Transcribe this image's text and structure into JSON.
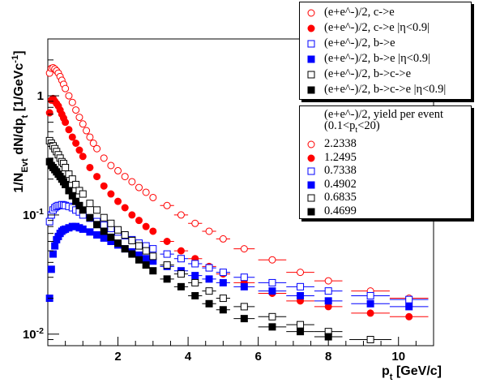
{
  "chart_data": {
    "type": "scatter",
    "xlabel": "p_t [GeV/c]",
    "ylabel": "1/N_Evt dN/dp_t [1/GeVc^-1]",
    "xlim": [
      0,
      11
    ],
    "ylim": [
      0.008,
      3
    ],
    "yscale": "log",
    "x_ticks": [
      "2",
      "4",
      "6",
      "8",
      "10"
    ],
    "y_ticks": [
      "10^-2",
      "10^-1",
      "1"
    ],
    "grid": false,
    "legend_placement": "top-right",
    "series": [
      {
        "name": "(e+e^-)/2, c->e",
        "marker": "open-circle",
        "color": "#ff0000",
        "x": [
          0.05,
          0.1,
          0.15,
          0.2,
          0.25,
          0.3,
          0.35,
          0.4,
          0.45,
          0.5,
          0.6,
          0.7,
          0.8,
          0.9,
          1.0,
          1.1,
          1.2,
          1.3,
          1.4,
          1.6,
          1.8,
          2.0,
          2.2,
          2.4,
          2.6,
          2.8,
          3.0,
          3.4,
          3.8,
          4.2,
          4.6,
          5.0,
          5.6,
          6.4,
          7.2,
          8.0,
          9.2,
          10.3
        ],
        "y": [
          1.55,
          1.7,
          1.72,
          1.68,
          1.62,
          1.55,
          1.45,
          1.35,
          1.25,
          1.15,
          1.0,
          0.88,
          0.76,
          0.66,
          0.58,
          0.51,
          0.45,
          0.4,
          0.36,
          0.3,
          0.26,
          0.235,
          0.21,
          0.19,
          0.17,
          0.155,
          0.14,
          0.12,
          0.1,
          0.085,
          0.073,
          0.063,
          0.052,
          0.042,
          0.033,
          0.028,
          0.023,
          0.02
        ]
      },
      {
        "name": "(e+e^-)/2, c->e |η<0.9|",
        "marker": "filled-circle",
        "color": "#ff0000",
        "x": [
          0.05,
          0.1,
          0.15,
          0.2,
          0.25,
          0.3,
          0.35,
          0.4,
          0.45,
          0.5,
          0.6,
          0.7,
          0.8,
          0.9,
          1.0,
          1.2,
          1.4,
          1.6,
          1.8,
          2.0,
          2.2,
          2.4,
          2.6,
          2.8,
          3.0,
          3.4,
          3.8,
          4.2,
          4.6,
          5.0,
          5.6,
          6.4,
          7.2,
          8.0,
          9.2,
          10.3
        ],
        "y": [
          0.72,
          0.92,
          0.95,
          0.9,
          0.86,
          0.82,
          0.76,
          0.7,
          0.65,
          0.6,
          0.52,
          0.45,
          0.4,
          0.35,
          0.31,
          0.25,
          0.21,
          0.175,
          0.15,
          0.13,
          0.115,
          0.1,
          0.09,
          0.08,
          0.073,
          0.06,
          0.05,
          0.043,
          0.037,
          0.032,
          0.027,
          0.022,
          0.019,
          0.017,
          0.015,
          0.014
        ]
      },
      {
        "name": "(e+e^-)/2, b->e",
        "marker": "open-square",
        "color": "#0000ff",
        "x": [
          0.05,
          0.1,
          0.15,
          0.2,
          0.25,
          0.3,
          0.35,
          0.4,
          0.45,
          0.5,
          0.6,
          0.7,
          0.8,
          0.9,
          1.0,
          1.2,
          1.4,
          1.6,
          1.8,
          2.0,
          2.2,
          2.4,
          2.6,
          2.8,
          3.0,
          3.4,
          3.8,
          4.2,
          4.6,
          5.0,
          5.6,
          6.4,
          7.2,
          8.0,
          9.2,
          10.3
        ],
        "y": [
          0.088,
          0.1,
          0.11,
          0.115,
          0.118,
          0.12,
          0.12,
          0.122,
          0.121,
          0.12,
          0.118,
          0.115,
          0.11,
          0.106,
          0.1,
          0.094,
          0.088,
          0.082,
          0.077,
          0.072,
          0.067,
          0.062,
          0.058,
          0.055,
          0.052,
          0.047,
          0.043,
          0.039,
          0.036,
          0.033,
          0.03,
          0.027,
          0.025,
          0.023,
          0.021,
          0.0195
        ]
      },
      {
        "name": "(e+e^-)/2, b->e |η<0.9|",
        "marker": "filled-square",
        "color": "#0000ff",
        "x": [
          0.05,
          0.1,
          0.15,
          0.2,
          0.25,
          0.3,
          0.35,
          0.4,
          0.45,
          0.5,
          0.6,
          0.7,
          0.8,
          0.9,
          1.0,
          1.2,
          1.4,
          1.6,
          1.8,
          2.0,
          2.2,
          2.4,
          2.6,
          2.8,
          3.0,
          3.4,
          3.8,
          4.2,
          4.6,
          5.0,
          5.6,
          6.4,
          7.2,
          8.0,
          9.2,
          10.3
        ],
        "y": [
          0.02,
          0.035,
          0.047,
          0.055,
          0.062,
          0.066,
          0.07,
          0.073,
          0.075,
          0.076,
          0.078,
          0.08,
          0.08,
          0.078,
          0.076,
          0.072,
          0.068,
          0.064,
          0.06,
          0.056,
          0.052,
          0.049,
          0.046,
          0.043,
          0.041,
          0.037,
          0.034,
          0.031,
          0.029,
          0.027,
          0.025,
          0.023,
          0.021,
          0.019,
          0.018,
          0.017
        ]
      },
      {
        "name": "(e+e^-)/2, b->c->e",
        "marker": "open-square",
        "color": "#000000",
        "x": [
          0.05,
          0.1,
          0.15,
          0.2,
          0.25,
          0.3,
          0.35,
          0.4,
          0.45,
          0.5,
          0.6,
          0.7,
          0.8,
          0.9,
          1.0,
          1.2,
          1.4,
          1.6,
          1.8,
          2.0,
          2.2,
          2.4,
          2.6,
          2.8,
          3.0,
          3.4,
          3.8,
          4.2,
          4.6,
          5.0,
          5.6,
          6.4,
          7.2,
          8.0,
          9.2
        ],
        "y": [
          0.42,
          0.4,
          0.38,
          0.36,
          0.34,
          0.32,
          0.3,
          0.28,
          0.27,
          0.25,
          0.22,
          0.2,
          0.18,
          0.16,
          0.15,
          0.125,
          0.11,
          0.095,
          0.085,
          0.075,
          0.068,
          0.061,
          0.055,
          0.05,
          0.045,
          0.038,
          0.032,
          0.027,
          0.023,
          0.02,
          0.017,
          0.014,
          0.012,
          0.0105,
          0.009
        ]
      },
      {
        "name": "(e+e^-)/2, b->c->e |η<0.9|",
        "marker": "filled-square",
        "color": "#000000",
        "x": [
          0.05,
          0.1,
          0.15,
          0.2,
          0.25,
          0.3,
          0.35,
          0.4,
          0.45,
          0.5,
          0.6,
          0.7,
          0.8,
          0.9,
          1.0,
          1.2,
          1.4,
          1.6,
          1.8,
          2.0,
          2.2,
          2.4,
          2.6,
          2.8,
          3.0,
          3.4,
          3.8,
          4.2,
          4.6,
          5.0,
          5.6,
          6.4,
          7.2,
          8.0
        ],
        "y": [
          0.28,
          0.26,
          0.25,
          0.24,
          0.23,
          0.22,
          0.21,
          0.2,
          0.19,
          0.18,
          0.16,
          0.145,
          0.13,
          0.12,
          0.11,
          0.095,
          0.083,
          0.073,
          0.065,
          0.058,
          0.052,
          0.047,
          0.042,
          0.038,
          0.034,
          0.029,
          0.025,
          0.021,
          0.018,
          0.016,
          0.0135,
          0.0115,
          0.0105,
          0.0095
        ]
      }
    ],
    "legend_entries": [
      "(e+e^-)/2, c->e",
      "(e+e^-)/2, c->e |η<0.9|",
      "(e+e^-)/2, b->e",
      "(e+e^-)/2, b->e |η<0.9|",
      "(e+e^-)/2, b->c->e",
      "(e+e^-)/2, b->c->e |η<0.9|"
    ],
    "yield_header_line1": "(e+e^-)/2, yield per event",
    "yield_header_line2": "(0.1<p_t<20)",
    "yield_values": [
      "2.2338",
      "1.2495",
      "0.7338",
      "0.4902",
      "0.6835",
      "0.4699"
    ]
  }
}
